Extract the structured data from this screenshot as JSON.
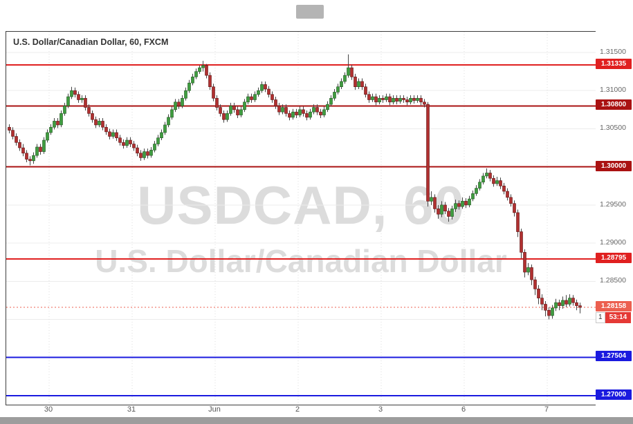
{
  "window": {
    "title": "U.S. Dollar/Canadian Dollar, 60, FXCM"
  },
  "watermark": {
    "line1": "USDCAD, 60",
    "line2": "U.S. Dollar/Canadian Dollar"
  },
  "countdown": {
    "prefix": "1",
    "time": "53:14",
    "color": "#e53935"
  },
  "time_axis": {
    "labels": [
      "30",
      "31",
      "Jun",
      "2",
      "3",
      "6",
      "7"
    ]
  },
  "chart_data": {
    "type": "candlestick",
    "title": "U.S. Dollar/Canadian Dollar, 60, FXCM",
    "symbol": "USDCAD",
    "interval": "60",
    "provider": "FXCM",
    "ylim": [
      1.268,
      1.3168
    ],
    "grid": true,
    "grid_levels": [
      1.315,
      1.31,
      1.305,
      1.3,
      1.295,
      1.29,
      1.285,
      1.28,
      1.275,
      1.27
    ],
    "y_ticks": [
      {
        "label": "1.31500",
        "value": 1.315
      },
      {
        "label": "1.31000",
        "value": 1.31
      },
      {
        "label": "1.30500",
        "value": 1.305
      },
      {
        "label": "1.29500",
        "value": 1.295
      },
      {
        "label": "1.29000",
        "value": 1.29
      },
      {
        "label": "1.28500",
        "value": 1.285
      }
    ],
    "price_lines": [
      {
        "label": "1.31335",
        "value": 1.31335,
        "color": "#e02020",
        "width": 2,
        "style": "solid"
      },
      {
        "label": "1.30800",
        "value": 1.308,
        "color": "#aa1212",
        "width": 2,
        "style": "solid"
      },
      {
        "label": "1.30000",
        "value": 1.3,
        "color": "#aa1212",
        "width": 2,
        "style": "solid"
      },
      {
        "label": "1.28795",
        "value": 1.28795,
        "color": "#e02020",
        "width": 2,
        "style": "solid"
      },
      {
        "label": "1.27504",
        "value": 1.27504,
        "color": "#1a1adf",
        "width": 2,
        "style": "solid"
      },
      {
        "label": "1.27000",
        "value": 1.27,
        "color": "#1a1adf",
        "width": 2,
        "style": "solid"
      }
    ],
    "last_price": {
      "label": "1.28158",
      "value": 1.28158,
      "color": "#ec5f4f",
      "style": "dotted"
    },
    "x_labels": [
      {
        "label": "30",
        "index": 12
      },
      {
        "label": "31",
        "index": 36
      },
      {
        "label": "Jun",
        "index": 60
      },
      {
        "label": "2",
        "index": 84
      },
      {
        "label": "3",
        "index": 108
      },
      {
        "label": "6",
        "index": 132
      },
      {
        "label": "7",
        "index": 156
      }
    ],
    "up_color": "#3f9c3f",
    "up_border": "#1e551e",
    "down_color": "#b03030",
    "down_border": "#5e1414",
    "wick_color": "#444444",
    "candles": [
      [
        1.3052,
        1.3056,
        1.3044,
        1.3048
      ],
      [
        1.3048,
        1.3052,
        1.3036,
        1.304
      ],
      [
        1.304,
        1.3044,
        1.3028,
        1.3032
      ],
      [
        1.3032,
        1.3036,
        1.3021,
        1.3025
      ],
      [
        1.3025,
        1.303,
        1.3014,
        1.3018
      ],
      [
        1.3018,
        1.3022,
        1.3006,
        1.301
      ],
      [
        1.301,
        1.3014,
        1.3002,
        1.3008
      ],
      [
        1.3008,
        1.3019,
        1.3004,
        1.3015
      ],
      [
        1.3015,
        1.303,
        1.3012,
        1.3026
      ],
      [
        1.3026,
        1.303,
        1.3016,
        1.302
      ],
      [
        1.302,
        1.3039,
        1.3017,
        1.3035
      ],
      [
        1.3035,
        1.3049,
        1.3032,
        1.3045
      ],
      [
        1.3045,
        1.3056,
        1.3042,
        1.3052
      ],
      [
        1.3052,
        1.3064,
        1.3049,
        1.306
      ],
      [
        1.306,
        1.3064,
        1.3051,
        1.3055
      ],
      [
        1.3055,
        1.3074,
        1.3052,
        1.307
      ],
      [
        1.307,
        1.3084,
        1.3067,
        1.308
      ],
      [
        1.308,
        1.3096,
        1.3077,
        1.3092
      ],
      [
        1.3092,
        1.3105,
        1.3089,
        1.31
      ],
      [
        1.31,
        1.3104,
        1.3091,
        1.3095
      ],
      [
        1.3095,
        1.3099,
        1.3084,
        1.3088
      ],
      [
        1.3088,
        1.3094,
        1.3084,
        1.309
      ],
      [
        1.309,
        1.3094,
        1.3074,
        1.3078
      ],
      [
        1.3078,
        1.3082,
        1.3066,
        1.307
      ],
      [
        1.307,
        1.3074,
        1.3058,
        1.3062
      ],
      [
        1.3062,
        1.3066,
        1.3051,
        1.3055
      ],
      [
        1.3055,
        1.3064,
        1.3052,
        1.306
      ],
      [
        1.306,
        1.3064,
        1.3048,
        1.3052
      ],
      [
        1.3052,
        1.3056,
        1.3042,
        1.3046
      ],
      [
        1.3046,
        1.305,
        1.3036,
        1.304
      ],
      [
        1.304,
        1.3049,
        1.3037,
        1.3045
      ],
      [
        1.3045,
        1.3049,
        1.3034,
        1.3038
      ],
      [
        1.3038,
        1.3042,
        1.3028,
        1.3032
      ],
      [
        1.3032,
        1.3036,
        1.3024,
        1.3028
      ],
      [
        1.3028,
        1.3039,
        1.3025,
        1.3035
      ],
      [
        1.3035,
        1.3039,
        1.3026,
        1.303
      ],
      [
        1.303,
        1.3034,
        1.3021,
        1.3025
      ],
      [
        1.3025,
        1.3029,
        1.3014,
        1.3018
      ],
      [
        1.3018,
        1.3022,
        1.3008,
        1.3012
      ],
      [
        1.3012,
        1.3024,
        1.3009,
        1.302
      ],
      [
        1.302,
        1.3024,
        1.3011,
        1.3015
      ],
      [
        1.3015,
        1.3026,
        1.3012,
        1.3022
      ],
      [
        1.3022,
        1.3034,
        1.3019,
        1.303
      ],
      [
        1.303,
        1.3042,
        1.3027,
        1.3038
      ],
      [
        1.3038,
        1.3049,
        1.3035,
        1.3045
      ],
      [
        1.3045,
        1.3059,
        1.3042,
        1.3055
      ],
      [
        1.3055,
        1.3069,
        1.3052,
        1.3065
      ],
      [
        1.3065,
        1.3079,
        1.3062,
        1.3075
      ],
      [
        1.3075,
        1.3089,
        1.3072,
        1.3085
      ],
      [
        1.3085,
        1.3089,
        1.3076,
        1.308
      ],
      [
        1.308,
        1.3094,
        1.3077,
        1.309
      ],
      [
        1.309,
        1.3104,
        1.3087,
        1.31
      ],
      [
        1.31,
        1.3114,
        1.3097,
        1.311
      ],
      [
        1.311,
        1.3122,
        1.3107,
        1.3118
      ],
      [
        1.3118,
        1.3129,
        1.3115,
        1.3125
      ],
      [
        1.3125,
        1.3133,
        1.3122,
        1.313
      ],
      [
        1.313,
        1.3139,
        1.3125,
        1.3133
      ],
      [
        1.3133,
        1.3135,
        1.3116,
        1.312
      ],
      [
        1.312,
        1.3124,
        1.3101,
        1.3105
      ],
      [
        1.3105,
        1.3109,
        1.3086,
        1.309
      ],
      [
        1.309,
        1.3094,
        1.3074,
        1.3078
      ],
      [
        1.3078,
        1.3082,
        1.3066,
        1.307
      ],
      [
        1.307,
        1.3074,
        1.3058,
        1.3062
      ],
      [
        1.3062,
        1.3074,
        1.3059,
        1.307
      ],
      [
        1.307,
        1.3084,
        1.3067,
        1.308
      ],
      [
        1.308,
        1.3084,
        1.3071,
        1.3075
      ],
      [
        1.3075,
        1.3079,
        1.3064,
        1.3068
      ],
      [
        1.3068,
        1.3079,
        1.3065,
        1.3075
      ],
      [
        1.3075,
        1.3089,
        1.3072,
        1.3085
      ],
      [
        1.3085,
        1.3096,
        1.3082,
        1.3092
      ],
      [
        1.3092,
        1.3096,
        1.3084,
        1.3088
      ],
      [
        1.3088,
        1.3099,
        1.3085,
        1.3095
      ],
      [
        1.3095,
        1.3104,
        1.3092,
        1.31
      ],
      [
        1.31,
        1.3112,
        1.3097,
        1.3108
      ],
      [
        1.3108,
        1.3112,
        1.3098,
        1.3102
      ],
      [
        1.3102,
        1.3106,
        1.3091,
        1.3095
      ],
      [
        1.3095,
        1.3099,
        1.3084,
        1.3088
      ],
      [
        1.3088,
        1.3092,
        1.3076,
        1.308
      ],
      [
        1.308,
        1.3084,
        1.3068,
        1.3072
      ],
      [
        1.3072,
        1.3082,
        1.3069,
        1.3078
      ],
      [
        1.3078,
        1.3082,
        1.3066,
        1.307
      ],
      [
        1.307,
        1.3074,
        1.3061,
        1.3065
      ],
      [
        1.3065,
        1.3076,
        1.3062,
        1.3072
      ],
      [
        1.3072,
        1.3076,
        1.3064,
        1.3068
      ],
      [
        1.3068,
        1.3079,
        1.3065,
        1.3075
      ],
      [
        1.3075,
        1.3079,
        1.3066,
        1.307
      ],
      [
        1.307,
        1.3074,
        1.3061,
        1.3065
      ],
      [
        1.3065,
        1.3076,
        1.3062,
        1.3072
      ],
      [
        1.3072,
        1.3082,
        1.3069,
        1.3078
      ],
      [
        1.3078,
        1.3082,
        1.3068,
        1.3072
      ],
      [
        1.3072,
        1.3076,
        1.3064,
        1.3068
      ],
      [
        1.3068,
        1.3079,
        1.3065,
        1.3075
      ],
      [
        1.3075,
        1.3086,
        1.3072,
        1.3082
      ],
      [
        1.3082,
        1.3094,
        1.3079,
        1.309
      ],
      [
        1.309,
        1.3102,
        1.3087,
        1.3098
      ],
      [
        1.3098,
        1.3109,
        1.3095,
        1.3105
      ],
      [
        1.3105,
        1.3116,
        1.3102,
        1.3112
      ],
      [
        1.3112,
        1.3124,
        1.3109,
        1.312
      ],
      [
        1.312,
        1.31475,
        1.3117,
        1.313
      ],
      [
        1.313,
        1.3134,
        1.3114,
        1.3118
      ],
      [
        1.3118,
        1.3122,
        1.3101,
        1.3105
      ],
      [
        1.3105,
        1.3116,
        1.3102,
        1.3112
      ],
      [
        1.3112,
        1.3116,
        1.3101,
        1.3105
      ],
      [
        1.3105,
        1.3109,
        1.3091,
        1.3095
      ],
      [
        1.3095,
        1.3099,
        1.3084,
        1.3088
      ],
      [
        1.3088,
        1.3096,
        1.3085,
        1.3092
      ],
      [
        1.3092,
        1.3096,
        1.3081,
        1.3085
      ],
      [
        1.3085,
        1.3094,
        1.3082,
        1.309
      ],
      [
        1.309,
        1.3094,
        1.3084,
        1.3088
      ],
      [
        1.3088,
        1.3096,
        1.3085,
        1.3092
      ],
      [
        1.3092,
        1.3096,
        1.3081,
        1.3085
      ],
      [
        1.3085,
        1.3094,
        1.3082,
        1.309
      ],
      [
        1.309,
        1.3094,
        1.3082,
        1.3086
      ],
      [
        1.3086,
        1.3094,
        1.3083,
        1.309
      ],
      [
        1.309,
        1.3094,
        1.3084,
        1.3088
      ],
      [
        1.3088,
        1.3092,
        1.3081,
        1.3085
      ],
      [
        1.3085,
        1.3094,
        1.3082,
        1.309
      ],
      [
        1.309,
        1.3094,
        1.3083,
        1.3087
      ],
      [
        1.3087,
        1.3094,
        1.3084,
        1.309
      ],
      [
        1.309,
        1.3094,
        1.3081,
        1.3085
      ],
      [
        1.3085,
        1.3089,
        1.3078,
        1.3082
      ],
      [
        1.3082,
        1.3085,
        1.2948,
        1.2955
      ],
      [
        1.2955,
        1.2968,
        1.295,
        1.296
      ],
      [
        1.296,
        1.2964,
        1.294,
        1.2945
      ],
      [
        1.2945,
        1.295,
        1.2932,
        1.2938
      ],
      [
        1.2938,
        1.2955,
        1.2934,
        1.295
      ],
      [
        1.295,
        1.2954,
        1.2938,
        1.2942
      ],
      [
        1.2942,
        1.2946,
        1.2928,
        1.2935
      ],
      [
        1.2935,
        1.2949,
        1.2931,
        1.2945
      ],
      [
        1.2945,
        1.2957,
        1.2941,
        1.2952
      ],
      [
        1.2952,
        1.2956,
        1.2944,
        1.2948
      ],
      [
        1.2948,
        1.296,
        1.2945,
        1.2955
      ],
      [
        1.2955,
        1.2959,
        1.2946,
        1.295
      ],
      [
        1.295,
        1.2962,
        1.2947,
        1.2958
      ],
      [
        1.2958,
        1.2969,
        1.2955,
        1.2965
      ],
      [
        1.2965,
        1.2976,
        1.2962,
        1.2972
      ],
      [
        1.2972,
        1.2984,
        1.2969,
        1.298
      ],
      [
        1.298,
        1.2992,
        1.2977,
        1.2988
      ],
      [
        1.2988,
        1.2998,
        1.2985,
        1.2992
      ],
      [
        1.2992,
        1.2996,
        1.2981,
        1.2985
      ],
      [
        1.2985,
        1.2989,
        1.2974,
        1.2978
      ],
      [
        1.2978,
        1.2987,
        1.2975,
        1.2982
      ],
      [
        1.2982,
        1.2986,
        1.2971,
        1.2975
      ],
      [
        1.2975,
        1.2979,
        1.2964,
        1.2968
      ],
      [
        1.2968,
        1.2972,
        1.2956,
        1.296
      ],
      [
        1.296,
        1.2964,
        1.2948,
        1.2952
      ],
      [
        1.2952,
        1.2956,
        1.2935,
        1.294
      ],
      [
        1.294,
        1.2944,
        1.2908,
        1.2915
      ],
      [
        1.2915,
        1.2919,
        1.288,
        1.2888
      ],
      [
        1.2888,
        1.2892,
        1.2855,
        1.2862
      ],
      [
        1.2862,
        1.2874,
        1.2858,
        1.2868
      ],
      [
        1.2868,
        1.2872,
        1.2845,
        1.2852
      ],
      [
        1.2852,
        1.2856,
        1.2832,
        1.284
      ],
      [
        1.284,
        1.2845,
        1.282,
        1.2828
      ],
      [
        1.2828,
        1.2833,
        1.2812,
        1.282
      ],
      [
        1.282,
        1.2824,
        1.2804,
        1.2812
      ],
      [
        1.2812,
        1.2816,
        1.28,
        1.2805
      ],
      [
        1.2805,
        1.2819,
        1.2801,
        1.2815
      ],
      [
        1.2815,
        1.2827,
        1.2811,
        1.2822
      ],
      [
        1.2822,
        1.2826,
        1.2812,
        1.2818
      ],
      [
        1.2818,
        1.283,
        1.2814,
        1.2825
      ],
      [
        1.2825,
        1.2832,
        1.2816,
        1.282
      ],
      [
        1.282,
        1.2833,
        1.2817,
        1.2828
      ],
      [
        1.2828,
        1.2832,
        1.2818,
        1.2822
      ],
      [
        1.2822,
        1.2826,
        1.2812,
        1.2818
      ],
      [
        1.2818,
        1.2822,
        1.2808,
        1.28158
      ]
    ]
  }
}
